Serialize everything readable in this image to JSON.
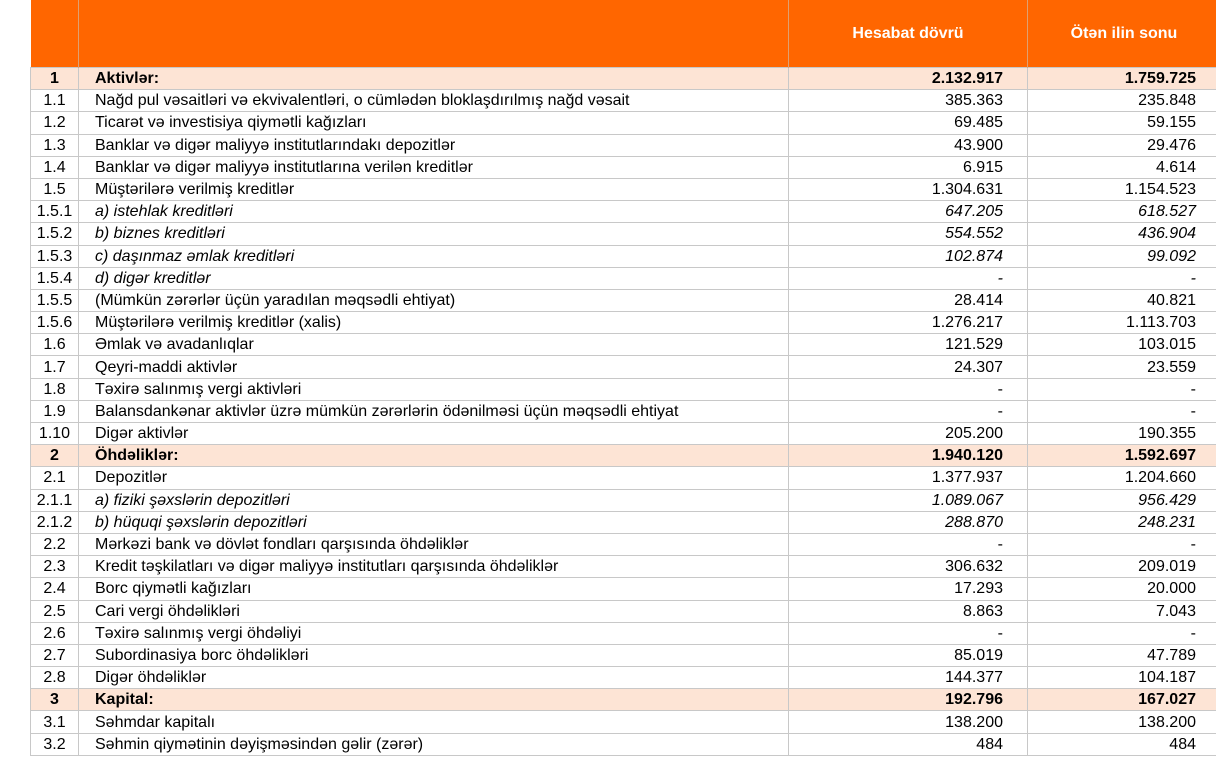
{
  "header": {
    "col_num": "",
    "col_label": "",
    "col_current": "Hesabat dövrü",
    "col_previous": "Ötən ilin sonu"
  },
  "accent_color": "#ff6600",
  "section_color": "#fde4d5",
  "rows": [
    {
      "num": "1",
      "label": "Aktivlər:",
      "current": "2.132.917",
      "previous": "1.759.725",
      "type": "section"
    },
    {
      "num": "1.1",
      "label": "Nağd pul vəsaitləri və  ekvivalentləri, o cümlədən bloklaşdırılmış nağd vəsait",
      "current": "385.363",
      "previous": "235.848",
      "type": "normal"
    },
    {
      "num": "1.2",
      "label": "Ticarət və investisiya qiymətli kağızları",
      "current": "69.485",
      "previous": "59.155",
      "type": "normal"
    },
    {
      "num": "1.3",
      "label": "Banklar və digər maliyyə institutlarındakı depozitlər",
      "current": "43.900",
      "previous": "29.476",
      "type": "normal"
    },
    {
      "num": "1.4",
      "label": "Banklar və digər maliyyə institutlarına verilən kreditlər",
      "current": "6.915",
      "previous": "4.614",
      "type": "normal"
    },
    {
      "num": "1.5",
      "label": "Müştərilərə verilmiş kreditlər",
      "current": "1.304.631",
      "previous": "1.154.523",
      "type": "normal"
    },
    {
      "num": "1.5.1",
      "label": "a) istehlak kreditləri",
      "current": "647.205",
      "previous": "618.527",
      "type": "sub"
    },
    {
      "num": "1.5.2",
      "label": "b) biznes kreditləri",
      "current": "554.552",
      "previous": "436.904",
      "type": "sub"
    },
    {
      "num": "1.5.3",
      "label": "c) daşınmaz əmlak kreditləri",
      "current": "102.874",
      "previous": "99.092",
      "type": "sub"
    },
    {
      "num": "1.5.4",
      "label": "d) digər kreditlər",
      "current": "-",
      "previous": "-",
      "type": "sub"
    },
    {
      "num": "1.5.5",
      "label": "(Mümkün zərərlər üçün yaradılan məqsədli ehtiyat)",
      "current": "28.414",
      "previous": "40.821",
      "type": "normal"
    },
    {
      "num": "1.5.6",
      "label": "Müştərilərə verilmiş kreditlər (xalis)",
      "current": "1.276.217",
      "previous": "1.113.703",
      "type": "normal"
    },
    {
      "num": "1.6",
      "label": "Əmlak və avadanlıqlar",
      "current": "121.529",
      "previous": "103.015",
      "type": "normal"
    },
    {
      "num": "1.7",
      "label": "Qeyri-maddi aktivlər",
      "current": "24.307",
      "previous": "23.559",
      "type": "normal"
    },
    {
      "num": "1.8",
      "label": "Təxirə salınmış vergi aktivləri",
      "current": "-",
      "previous": "-",
      "type": "normal"
    },
    {
      "num": "1.9",
      "label": "Balansdankənar aktivlər üzrə mümkün zərərlərin ödənilməsi üçün məqsədli ehtiyat",
      "current": "-",
      "previous": "-",
      "type": "normal"
    },
    {
      "num": "1.10",
      "label": "Digər aktivlər",
      "current": "205.200",
      "previous": "190.355",
      "type": "normal"
    },
    {
      "num": "2",
      "label": "Öhdəliklər:",
      "current": "1.940.120",
      "previous": "1.592.697",
      "type": "section"
    },
    {
      "num": "2.1",
      "label": "Depozitlər",
      "current": "1.377.937",
      "previous": "1.204.660",
      "type": "normal"
    },
    {
      "num": "2.1.1",
      "label": "a) fiziki şəxslərin depozitləri",
      "current": "1.089.067",
      "previous": "956.429",
      "type": "sub"
    },
    {
      "num": "2.1.2",
      "label": "b) hüquqi şəxslərin depozitləri",
      "current": "288.870",
      "previous": "248.231",
      "type": "sub"
    },
    {
      "num": "2.2",
      "label": "Mərkəzi bank və dövlət fondları qarşısında öhdəliklər",
      "current": "-",
      "previous": "-",
      "type": "normal"
    },
    {
      "num": "2.3",
      "label": "Kredit təşkilatları və digər maliyyə institutları qarşısında öhdəliklər",
      "current": "306.632",
      "previous": "209.019",
      "type": "normal"
    },
    {
      "num": "2.4",
      "label": "Borc qiymətli kağızları",
      "current": "17.293",
      "previous": "20.000",
      "type": "normal"
    },
    {
      "num": "2.5",
      "label": "Cari vergi öhdəlikləri",
      "current": "8.863",
      "previous": "7.043",
      "type": "normal"
    },
    {
      "num": "2.6",
      "label": "Təxirə salınmış vergi öhdəliyi",
      "current": "-",
      "previous": "-",
      "type": "normal"
    },
    {
      "num": "2.7",
      "label": "Subordinasiya borc öhdəlikləri",
      "current": "85.019",
      "previous": "47.789",
      "type": "normal"
    },
    {
      "num": "2.8",
      "label": "Digər öhdəliklər",
      "current": "144.377",
      "previous": "104.187",
      "type": "normal"
    },
    {
      "num": "3",
      "label": "Kapital:",
      "current": "192.796",
      "previous": "167.027",
      "type": "section"
    },
    {
      "num": "3.1",
      "label": "Səhmdar kapitalı",
      "current": "138.200",
      "previous": "138.200",
      "type": "normal"
    },
    {
      "num": "3.2",
      "label": "Səhmin qiymətinin dəyişməsindən gəlir (zərər)",
      "current": "484",
      "previous": "484",
      "type": "normal"
    }
  ]
}
